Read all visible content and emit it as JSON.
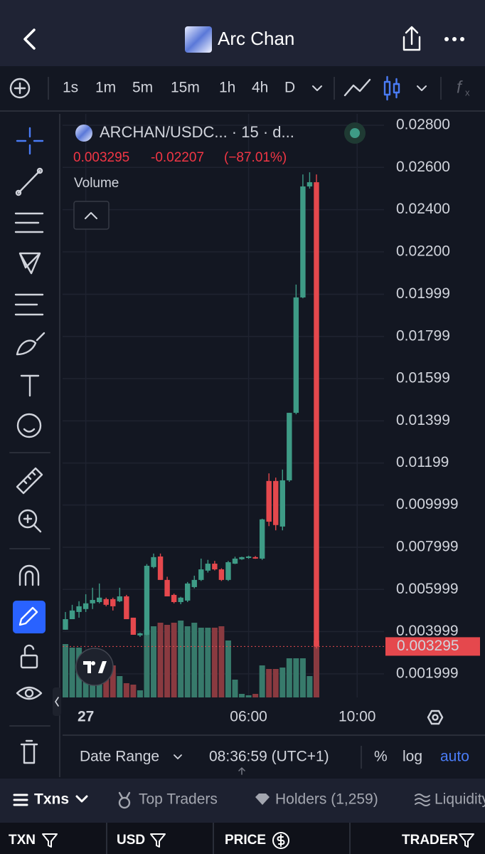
{
  "header": {
    "title": "Arc Chan"
  },
  "intervals": {
    "items": [
      "1s",
      "1m",
      "5m",
      "15m",
      "1h",
      "4h",
      "D"
    ],
    "active": 3,
    "color": "#d1d4dc",
    "active_color": "#4a7cf6"
  },
  "chart_data": {
    "type": "candlestick",
    "symbol": "ARCHAN/USDC... · 15 · d...",
    "last": "0.003295",
    "change": "-0.02207",
    "change_pct": "(−87.01%)",
    "volume_label": "Volume",
    "open": [
      0.00409,
      0.00459,
      0.00493,
      0.00507,
      0.00534,
      0.0054,
      0.00554,
      0.00554,
      0.00544,
      0.00567,
      0.00466,
      0.00382,
      0.00385,
      0.00706,
      0.00756,
      0.00645,
      0.00574,
      0.0054,
      0.00547,
      0.00611,
      0.00645,
      0.00689,
      0.00722,
      0.00695,
      0.00645,
      0.00722,
      0.00743,
      0.00749,
      0.00753,
      0.00746,
      0.01114,
      0.01114,
      0.00898,
      0.01117,
      0.01437,
      0.01984,
      0.0251,
      0.0253
    ],
    "high": [
      0.00493,
      0.00527,
      0.00544,
      0.00577,
      0.00608,
      0.00628,
      0.00561,
      0.00561,
      0.00608,
      0.00574,
      0.00466,
      0.00395,
      0.0072,
      0.0077,
      0.0077,
      0.0066,
      0.0058,
      0.00565,
      0.00635,
      0.00665,
      0.00746,
      0.0074,
      0.00735,
      0.007,
      0.00735,
      0.00755,
      0.00755,
      0.0076,
      0.00758,
      0.00935,
      0.0115,
      0.0113,
      0.01168,
      0.01437,
      0.02045,
      0.02567,
      0.02577,
      0.02567
    ],
    "low": [
      0.00409,
      0.00459,
      0.00466,
      0.00493,
      0.00507,
      0.00534,
      0.0052,
      0.005,
      0.0054,
      0.00459,
      0.00385,
      0.00375,
      0.00382,
      0.007,
      0.00645,
      0.00567,
      0.00534,
      0.0053,
      0.0054,
      0.00605,
      0.0064,
      0.0068,
      0.0069,
      0.0064,
      0.0064,
      0.0072,
      0.0074,
      0.00745,
      0.00745,
      0.0074,
      0.009,
      0.0088,
      0.0088,
      0.0111,
      0.0143,
      0.0198,
      0.025,
      0.0032
    ],
    "close": [
      0.00459,
      0.005,
      0.0052,
      0.00534,
      0.0055,
      0.00561,
      0.00527,
      0.0052,
      0.00567,
      0.00459,
      0.00385,
      0.00392,
      0.00712,
      0.00753,
      0.00645,
      0.00567,
      0.0054,
      0.00561,
      0.00628,
      0.00645,
      0.00695,
      0.00722,
      0.00695,
      0.00645,
      0.00729,
      0.00746,
      0.00753,
      0.00756,
      0.00746,
      0.00932,
      0.00921,
      0.00905,
      0.01117,
      0.01437,
      0.01984,
      0.0251,
      0.0253,
      0.003295
    ],
    "volume": [
      75,
      70,
      70,
      45,
      40,
      30,
      45,
      45,
      30,
      20,
      18,
      10,
      95,
      100,
      105,
      102,
      105,
      108,
      100,
      105,
      98,
      98,
      98,
      100,
      80,
      25,
      5,
      3,
      5,
      45,
      40,
      40,
      42,
      55,
      55,
      55,
      30,
      80
    ],
    "up_color": "#3e9b86",
    "down_color": "#e5484d",
    "volume_up_color": "#377a6b",
    "volume_down_color": "#8a3a40",
    "ylim": [
      0.00088,
      0.02854
    ],
    "yticks": [
      {
        "value": 0.028,
        "label": "0.02800"
      },
      {
        "value": 0.026,
        "label": "0.02600"
      },
      {
        "value": 0.024,
        "label": "0.02400"
      },
      {
        "value": 0.022,
        "label": "0.02200"
      },
      {
        "value": 0.01999,
        "label": "0.01999"
      },
      {
        "value": 0.01799,
        "label": "0.01799"
      },
      {
        "value": 0.01599,
        "label": "0.01599"
      },
      {
        "value": 0.01399,
        "label": "0.01399"
      },
      {
        "value": 0.01199,
        "label": "0.01199"
      },
      {
        "value": 0.009999,
        "label": "0.009999"
      },
      {
        "value": 0.007999,
        "label": "0.007999"
      },
      {
        "value": 0.005999,
        "label": "0.005999"
      },
      {
        "value": 0.003999,
        "label": "0.003999"
      },
      {
        "value": 0.001999,
        "label": "0.001999"
      }
    ],
    "xticks": [
      {
        "value": 3,
        "label": "27"
      },
      {
        "value": 27,
        "label": "06:00"
      },
      {
        "value": 43,
        "label": "10:00"
      }
    ],
    "last_price": {
      "value": 0.003295,
      "label": "0.003295"
    },
    "grid": true
  },
  "chart_footer": {
    "date_range": "Date Range",
    "time": "08:36:59 (UTC+1)",
    "percent": "%",
    "log": "log",
    "auto": "auto"
  },
  "tabs": [
    "Txns",
    "Top Traders",
    "Holders (1,259)",
    "Liquidity"
  ],
  "table": {
    "columns": [
      "TXN",
      "USD",
      "PRICE",
      "TRADER"
    ]
  }
}
